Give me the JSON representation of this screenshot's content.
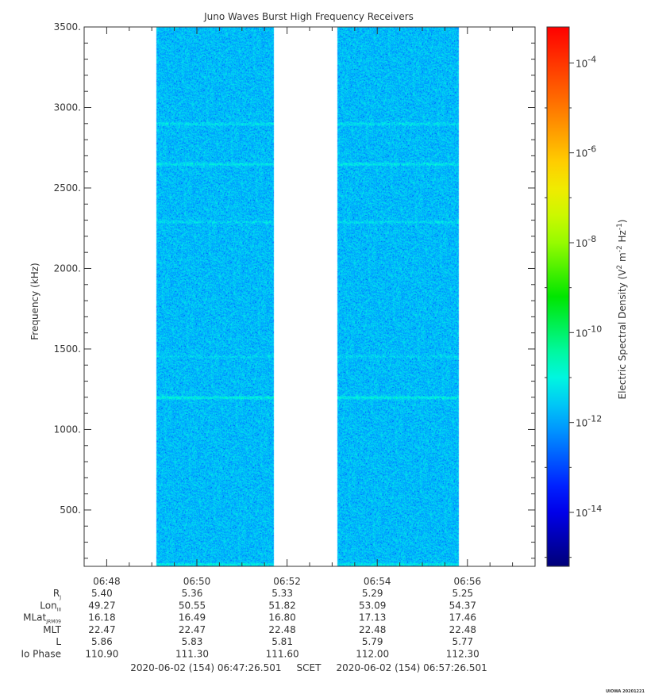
{
  "chart_data": {
    "type": "heatmap",
    "title": "Juno Waves Burst High Frequency Receivers",
    "ylabel": "Frequency (kHz)",
    "colorbar_label_main": "Electric Spectral Density (V",
    "colorbar_label_m": " m",
    "colorbar_label_hz": " Hz",
    "colorbar_label_close": ")",
    "colorbar_exp_v": "2",
    "colorbar_exp_m": "-2",
    "colorbar_exp_hz": "-1",
    "ylim": [
      150,
      3500
    ],
    "y_ticks": [
      {
        "value": 3500,
        "label": "3500."
      },
      {
        "value": 3000,
        "label": "3000."
      },
      {
        "value": 2500,
        "label": "2500."
      },
      {
        "value": 2000,
        "label": "2000."
      },
      {
        "value": 1500,
        "label": "1500."
      },
      {
        "value": 1000,
        "label": "1000."
      },
      {
        "value": 500,
        "label": "500."
      }
    ],
    "x_range_minutes": [
      407.5,
      417.5
    ],
    "x_ticks": [
      {
        "minute": 408,
        "label": "06:48"
      },
      {
        "minute": 410,
        "label": "06:50"
      },
      {
        "minute": 412,
        "label": "06:52"
      },
      {
        "minute": 414,
        "label": "06:54"
      },
      {
        "minute": 416,
        "label": "06:56"
      }
    ],
    "data_intervals_minutes": [
      [
        409.1,
        411.7
      ],
      [
        413.1,
        415.8
      ]
    ],
    "background_level_log": -11.7,
    "emission_lines": [
      {
        "frequency_khz": 1200,
        "level_log": -10.9
      },
      {
        "frequency_khz": 2650,
        "level_log": -11.1
      },
      {
        "frequency_khz": 2900,
        "level_log": -11.2
      },
      {
        "frequency_khz": 2290,
        "level_log": -11.3
      },
      {
        "frequency_khz": 1455,
        "level_log": -11.4
      },
      {
        "frequency_khz": 165,
        "level_log": -10.9
      }
    ],
    "colorbar_range_log": [
      -15.2,
      -3.2
    ],
    "colorbar_ticks": [
      {
        "base": "10",
        "exp": "-4",
        "value": -4
      },
      {
        "base": "10",
        "exp": "-6",
        "value": -6
      },
      {
        "base": "10",
        "exp": "-8",
        "value": -8
      },
      {
        "base": "10",
        "exp": "-10",
        "value": -10
      },
      {
        "base": "10",
        "exp": "-12",
        "value": -12
      },
      {
        "base": "10",
        "exp": "-14",
        "value": -14
      }
    ],
    "ephemeris": {
      "rows": [
        {
          "label": "R",
          "sub": "J",
          "values": [
            "5.40",
            "5.36",
            "5.33",
            "5.29",
            "5.25"
          ]
        },
        {
          "label": "Lon",
          "sub": "III",
          "values": [
            "49.27",
            "50.55",
            "51.82",
            "53.09",
            "54.37"
          ]
        },
        {
          "label": "MLat",
          "sub": "JRM09",
          "values": [
            "16.18",
            "16.49",
            "16.80",
            "17.13",
            "17.46"
          ]
        },
        {
          "label": "MLT",
          "sub": "",
          "values": [
            "22.47",
            "22.47",
            "22.48",
            "22.48",
            "22.48"
          ]
        },
        {
          "label": "L",
          "sub": "",
          "values": [
            "5.86",
            "5.83",
            "5.81",
            "5.79",
            "5.77"
          ]
        },
        {
          "label": "Io Phase",
          "sub": "",
          "values": [
            "110.90",
            "111.30",
            "111.60",
            "112.00",
            "112.30"
          ]
        }
      ]
    },
    "time_footer": "2020-06-02 (154) 06:47:26.501     SCET     2020-06-02 (154) 06:57:26.501",
    "credit": "UIOWA 20201221"
  }
}
